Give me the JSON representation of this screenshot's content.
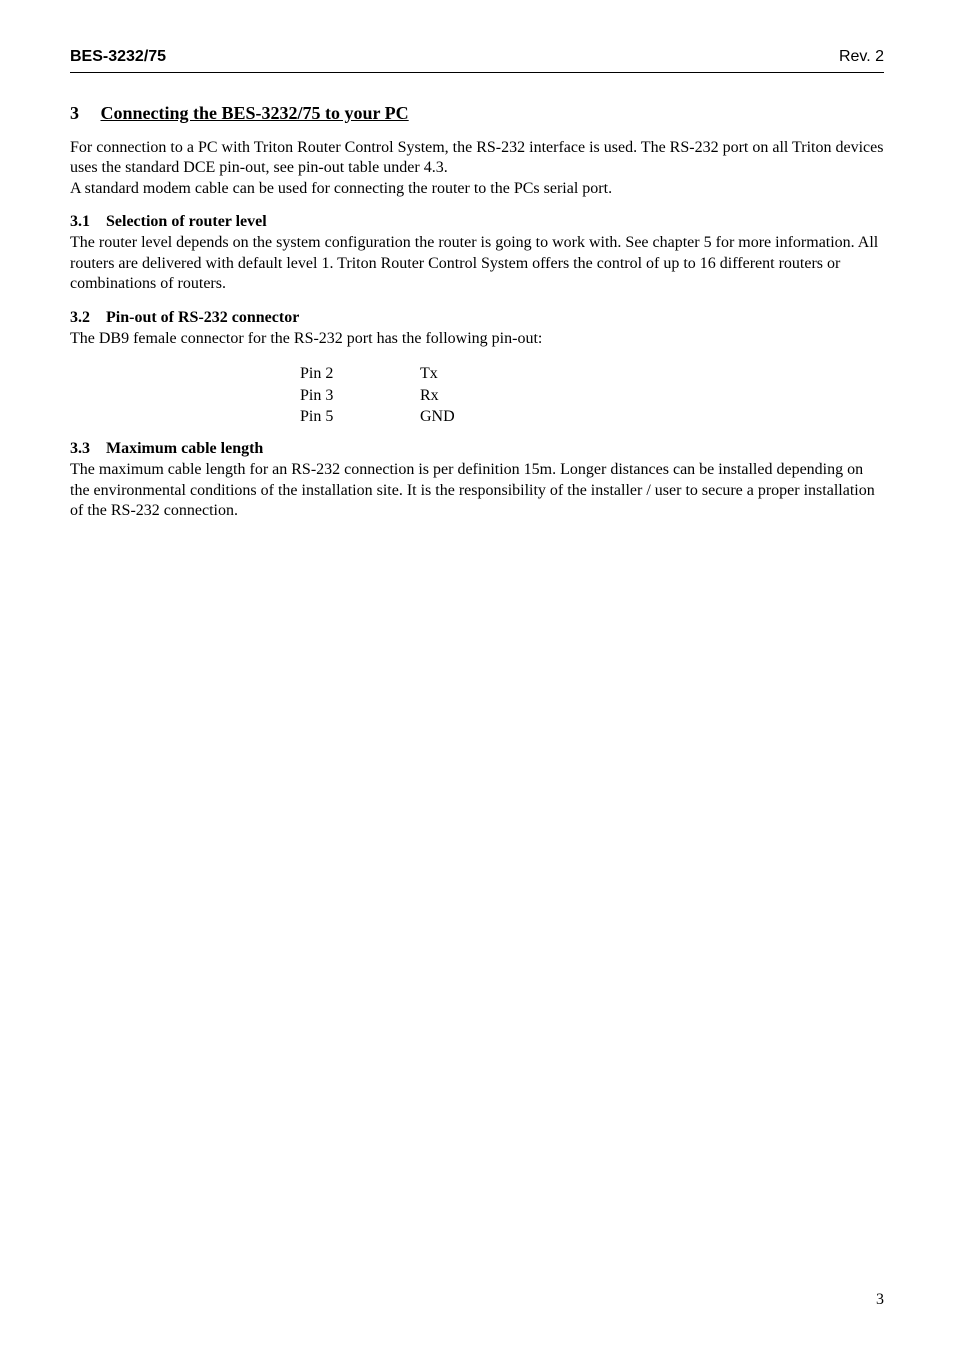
{
  "header": {
    "left": "BES-3232/75",
    "right": "Rev. 2"
  },
  "section": {
    "number": "3",
    "title": "Connecting the BES-3232/75 to your PC",
    "intro": "For connection to a PC with Triton Router Control System, the RS-232 interface is used. The RS-232 port on all Triton devices uses the standard DCE pin-out, see pin-out table under 4.3.\nA standard modem cable can be used for connecting the router to the PCs serial port."
  },
  "sub1": {
    "number": "3.1",
    "title": "Selection of router level",
    "body": "The router level depends on the system configuration the router is going to work with. See chapter 5 for more information. All routers are delivered with default level 1. Triton Router Control System offers the control of up to 16 different routers or combinations of routers."
  },
  "sub2": {
    "number": "3.2",
    "title": "Pin-out of RS-232 connector",
    "body": "The DB9 female connector for the RS-232 port has the following pin-out:",
    "pins": {
      "r1l": "Pin 2",
      "r1v": "Tx",
      "r2l": "Pin 3",
      "r2v": "Rx",
      "r3l": "Pin 5",
      "r3v": "GND"
    }
  },
  "sub3": {
    "number": "3.3",
    "title": "Maximum cable length",
    "body": "The maximum cable length for an RS-232 connection is per definition 15m. Longer distances can be installed depending on the environmental conditions of the installation site. It is the responsibility of the installer / user to secure a proper installation of the RS-232 connection."
  },
  "footer": {
    "page_number": "3"
  }
}
